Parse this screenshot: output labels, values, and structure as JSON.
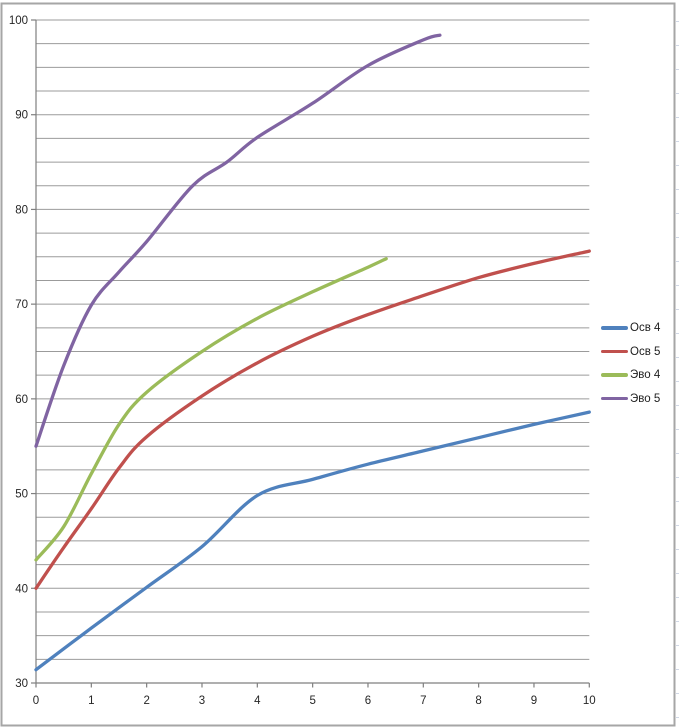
{
  "chart_data": {
    "type": "line",
    "title": "",
    "subtitle": "",
    "xlabel": "",
    "ylabel": "",
    "xlim": [
      0,
      10
    ],
    "ylim": [
      30,
      100
    ],
    "x_ticks": [
      0,
      1,
      2,
      3,
      4,
      5,
      6,
      7,
      8,
      9,
      10
    ],
    "y_tick_labels": [
      100,
      90,
      80,
      70,
      60,
      50,
      40,
      30
    ],
    "y_major_step": 10,
    "y_minor_gridline_step": 2.5,
    "grid": "horizontal minor gridlines every 2.5 units",
    "legend_position": "right",
    "line_style": "smoothed, no markers",
    "series": [
      {
        "name": "Осв 4",
        "color": "#4F81BD",
        "points": [
          [
            0,
            31.4
          ],
          [
            1,
            35.8
          ],
          [
            2,
            40.1
          ],
          [
            3,
            44.4
          ],
          [
            4,
            49.8
          ],
          [
            5,
            51.5
          ],
          [
            6,
            53.1
          ],
          [
            7,
            54.5
          ],
          [
            8,
            55.9
          ],
          [
            9,
            57.3
          ],
          [
            10,
            58.6
          ]
        ]
      },
      {
        "name": "Осв 5",
        "color": "#C0504D",
        "points": [
          [
            0,
            40.0
          ],
          [
            0.5,
            44.3
          ],
          [
            1,
            48.4
          ],
          [
            1.5,
            52.7
          ],
          [
            2,
            56.0
          ],
          [
            3,
            60.3
          ],
          [
            4,
            63.8
          ],
          [
            5,
            66.6
          ],
          [
            6,
            68.9
          ],
          [
            7,
            70.9
          ],
          [
            8,
            72.8
          ],
          [
            9,
            74.3
          ],
          [
            10,
            75.6
          ]
        ]
      },
      {
        "name": "Эво 4",
        "color": "#9BBB59",
        "points": [
          [
            0,
            43.0
          ],
          [
            0.5,
            46.5
          ],
          [
            1,
            52.1
          ],
          [
            1.5,
            57.3
          ],
          [
            2,
            60.7
          ],
          [
            3,
            65.0
          ],
          [
            4,
            68.5
          ],
          [
            5,
            71.3
          ],
          [
            6,
            73.9
          ],
          [
            6.33,
            74.8
          ]
        ]
      },
      {
        "name": "Эво 5",
        "color": "#8064A2",
        "points": [
          [
            0,
            55.0
          ],
          [
            0.5,
            63.5
          ],
          [
            1,
            69.9
          ],
          [
            1.5,
            73.4
          ],
          [
            2,
            76.6
          ],
          [
            2.83,
            82.5
          ],
          [
            3.45,
            85.0
          ],
          [
            4,
            87.6
          ],
          [
            5,
            91.2
          ],
          [
            6,
            95.2
          ],
          [
            7,
            97.9
          ],
          [
            7.3,
            98.4
          ]
        ]
      }
    ]
  },
  "legend": {
    "items": [
      "Осв 4",
      "Осв 5",
      "Эво 4",
      "Эво 5"
    ]
  },
  "colors": {
    "background": "#FFFFFF",
    "gridline": "#9B9B9B",
    "axis": "#7F7F7F",
    "chart_border": "#A6A6A6",
    "axis_label_text": "#262626",
    "worksheet_gridline": "#D0D7E5"
  }
}
